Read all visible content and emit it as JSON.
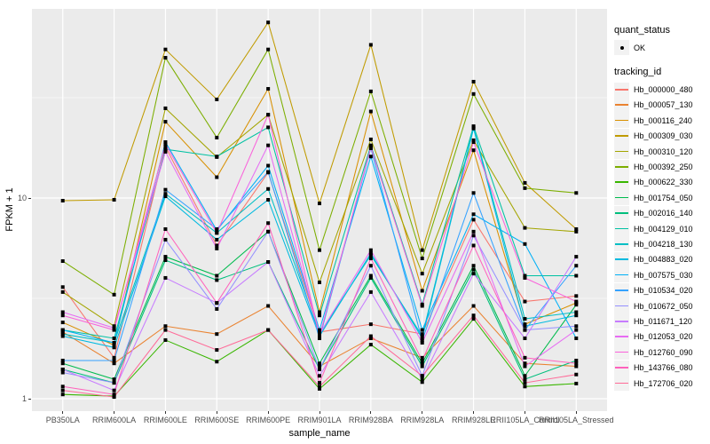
{
  "figure": {
    "y_axis_title": "FPKM + 1",
    "x_axis_title": "sample_name",
    "legend": {
      "quant_status_title": "quant_status",
      "quant_status_items": [
        {
          "label": "OK",
          "symbol": "point"
        }
      ],
      "tracking_id_title": "tracking_id"
    },
    "colors": {
      "panel_bg": "#EBEBEB",
      "grid": "#FFFFFF",
      "marker": "#000000",
      "axis_text": "#4D4D4D",
      "legend_key_bg": "#F2F2F2"
    }
  },
  "chart_data": {
    "type": "line",
    "title": "",
    "xlabel": "sample_name",
    "ylabel": "FPKM + 1",
    "y_scale": "log10",
    "ylim": [
      0.87,
      88
    ],
    "grid": true,
    "legend_position": "right",
    "y_major_breaks": [
      {
        "value": 10,
        "label": "10"
      },
      {
        "value": 1,
        "label": "1"
      }
    ],
    "y_minor_breaks": [
      31.62,
      3.162
    ],
    "categories": [
      "PB350LA",
      "RRIM600LA",
      "RRIM600LE",
      "RRIM600SE",
      "RRIM600PE",
      "RRIM901LA",
      "RRIM928BA",
      "RRIM928LA",
      "RRIM928LE",
      "RRII105LA_Control",
      "RRII105LA_Stressed"
    ],
    "series": [
      {
        "name": "Hb_000000_480",
        "color": "#F8766D",
        "values": [
          3.6,
          1.6,
          18.0,
          5.8,
          13.4,
          2.15,
          2.35,
          2.1,
          7.8,
          3.05,
          3.25
        ]
      },
      {
        "name": "Hb_000057_130",
        "color": "#EA8331",
        "values": [
          2.15,
          1.5,
          2.3,
          2.1,
          2.9,
          1.45,
          2.0,
          1.6,
          2.9,
          1.5,
          1.45
        ]
      },
      {
        "name": "Hb_000116_240",
        "color": "#D89000",
        "values": [
          2.4,
          1.85,
          24,
          12.7,
          35,
          2.7,
          27,
          3.45,
          17.3,
          2.35,
          3.0
        ]
      },
      {
        "name": "Hb_000309_030",
        "color": "#C09B00",
        "values": [
          9.7,
          9.8,
          55,
          31,
          75,
          9.4,
          58,
          5.5,
          38,
          11.9,
          7.0
        ]
      },
      {
        "name": "Hb_000310_120",
        "color": "#A3A500",
        "values": [
          3.4,
          2.3,
          28,
          16,
          26,
          3.8,
          19.6,
          4.2,
          19.4,
          7.1,
          6.8
        ]
      },
      {
        "name": "Hb_000392_250",
        "color": "#7CAE00",
        "values": [
          4.85,
          3.3,
          50,
          20,
          55,
          5.5,
          34,
          5.0,
          33,
          11.2,
          10.6
        ]
      },
      {
        "name": "Hb_000622_330",
        "color": "#39B600",
        "values": [
          1.05,
          1.03,
          1.96,
          1.53,
          2.2,
          1.12,
          1.86,
          1.21,
          2.5,
          1.15,
          1.19
        ]
      },
      {
        "name": "Hb_001754_050",
        "color": "#00BB4E",
        "values": [
          1.5,
          1.25,
          5.1,
          4.1,
          6.8,
          1.5,
          4.1,
          1.5,
          4.6,
          1.3,
          2.94
        ]
      },
      {
        "name": "Hb_002016_140",
        "color": "#00BF7D",
        "values": [
          1.4,
          1.2,
          4.9,
          3.9,
          4.8,
          1.4,
          4.0,
          1.45,
          4.4,
          1.25,
          1.55
        ]
      },
      {
        "name": "Hb_004129_010",
        "color": "#00C1A3",
        "values": [
          2.2,
          2.0,
          17.5,
          16.1,
          22.5,
          2.6,
          18.3,
          2.95,
          22.8,
          4.1,
          4.1
        ]
      },
      {
        "name": "Hb_004218_130",
        "color": "#00BFC4",
        "values": [
          2.1,
          1.9,
          10.5,
          6.7,
          11.1,
          2.1,
          5.2,
          2.05,
          22.5,
          2.5,
          2.7
        ]
      },
      {
        "name": "Hb_004883_020",
        "color": "#00BAE0",
        "values": [
          2.05,
          1.8,
          10.2,
          6.2,
          9.8,
          2.05,
          5.3,
          2.0,
          22.2,
          2.3,
          2.6
        ]
      },
      {
        "name": "Hb_007575_030",
        "color": "#00B0F6",
        "values": [
          2.2,
          1.9,
          19.0,
          6.9,
          14.5,
          2.2,
          16.1,
          2.2,
          8.3,
          5.9,
          2.0
        ]
      },
      {
        "name": "Hb_010534_020",
        "color": "#35A2FF",
        "values": [
          1.55,
          1.55,
          11.0,
          7.0,
          13.5,
          2.0,
          17.7,
          1.95,
          10.6,
          2.2,
          4.6
        ]
      },
      {
        "name": "Hb_010672_050",
        "color": "#9590FF",
        "values": [
          1.35,
          1.2,
          6.2,
          2.8,
          6.8,
          1.4,
          4.6,
          1.3,
          6.5,
          2.2,
          2.3
        ]
      },
      {
        "name": "Hb_011671_120",
        "color": "#C77CFF",
        "values": [
          1.4,
          1.1,
          4.0,
          3.0,
          4.8,
          1.3,
          3.4,
          1.25,
          4.2,
          2.0,
          5.1
        ]
      },
      {
        "name": "Hb_012053_020",
        "color": "#E76BF3",
        "values": [
          2.7,
          2.25,
          17.0,
          5.6,
          18.3,
          2.1,
          5.5,
          1.9,
          6.8,
          1.45,
          2.2
        ]
      },
      {
        "name": "Hb_012760_090",
        "color": "#FA62DB",
        "values": [
          2.6,
          2.2,
          18.5,
          6.7,
          26,
          2.05,
          17.9,
          2.9,
          19.0,
          4.0,
          3.05
        ]
      },
      {
        "name": "Hb_143766_080",
        "color": "#FF62BC",
        "values": [
          1.15,
          1.05,
          7.0,
          3.0,
          7.5,
          1.2,
          5.0,
          1.55,
          5.8,
          1.6,
          1.5
        ]
      },
      {
        "name": "Hb_172706_020",
        "color": "#FF6A98",
        "values": [
          1.1,
          1.02,
          2.2,
          1.75,
          2.2,
          1.15,
          2.05,
          1.3,
          2.6,
          1.2,
          1.32
        ]
      }
    ]
  }
}
